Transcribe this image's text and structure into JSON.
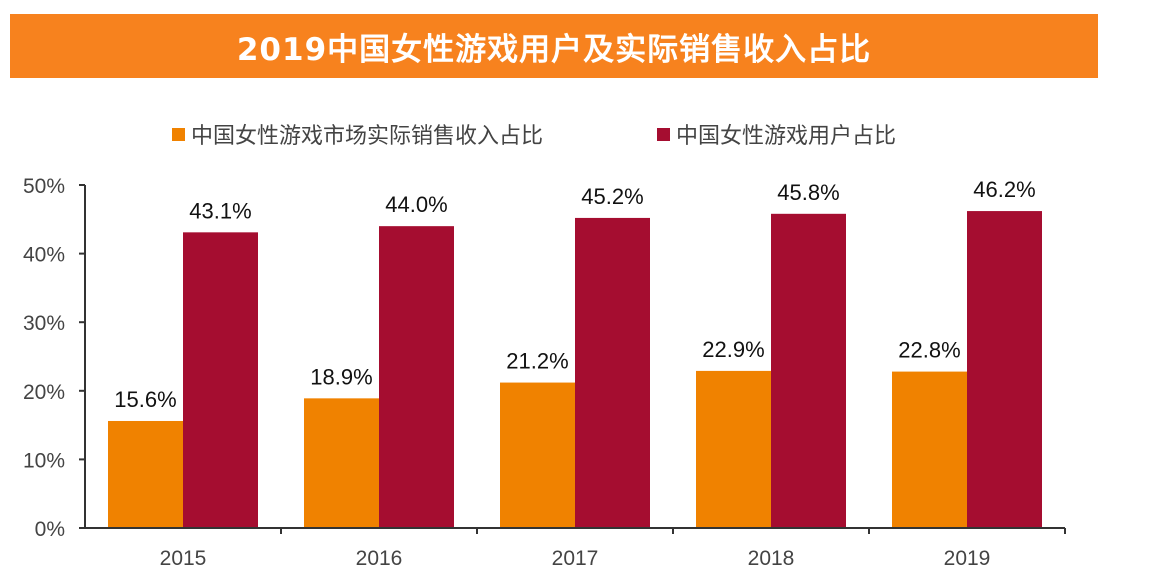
{
  "chart_data": {
    "type": "bar",
    "title": "2019中国女性游戏用户及实际销售收入占比",
    "categories": [
      "2015",
      "2016",
      "2017",
      "2018",
      "2019"
    ],
    "series": [
      {
        "name": "中国女性游戏市场实际销售收入占比",
        "values": [
          15.6,
          18.9,
          21.2,
          22.9,
          22.8
        ],
        "labels": [
          "15.6%",
          "18.9%",
          "21.2%",
          "22.9%",
          "22.8%"
        ],
        "color": "#F08200"
      },
      {
        "name": "中国女性游戏用户占比",
        "values": [
          43.1,
          44.0,
          45.2,
          45.8,
          46.2
        ],
        "labels": [
          "43.1%",
          "44.0%",
          "45.2%",
          "45.8%",
          "46.2%"
        ],
        "color": "#A50D30"
      }
    ],
    "yticks": [
      "0%",
      "10%",
      "20%",
      "30%",
      "40%",
      "50%"
    ],
    "ylim": [
      0,
      50
    ],
    "xlabel": "",
    "ylabel": "",
    "grid": false,
    "legend": "top",
    "title_bg_color": "#F7821E"
  }
}
